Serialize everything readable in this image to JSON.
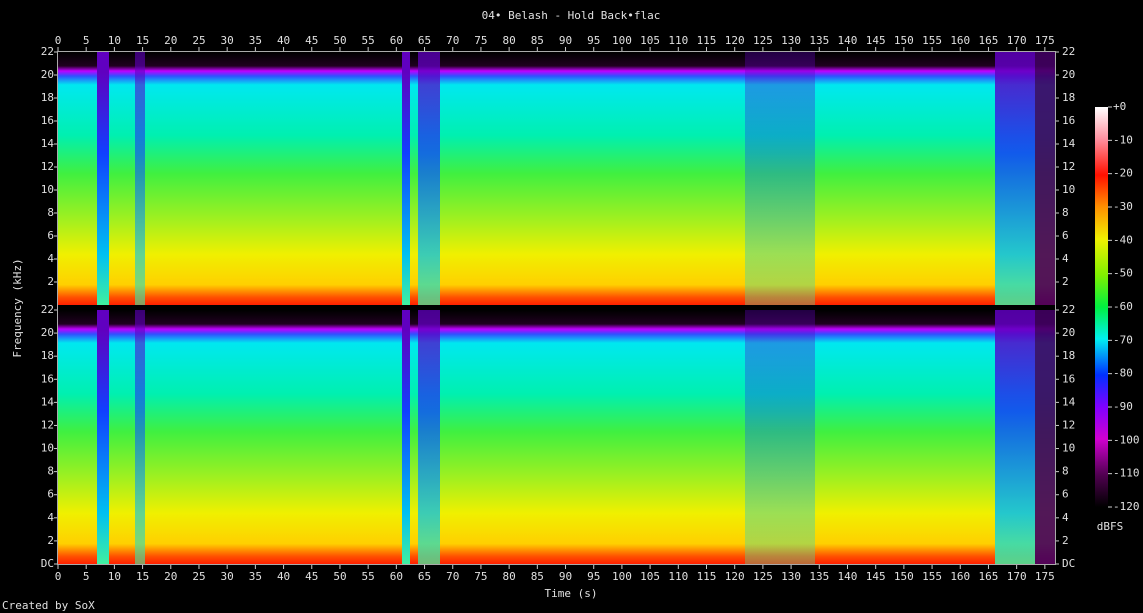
{
  "chart_data": {
    "type": "spectrogram",
    "title": "04• Belash - Hold Back•flac",
    "x_label": "Time (s)",
    "y_label": "Frequency (kHz)",
    "xlim": [
      0,
      176.8
    ],
    "xticks": [
      0,
      5,
      10,
      15,
      20,
      25,
      30,
      35,
      40,
      45,
      50,
      55,
      60,
      65,
      70,
      75,
      80,
      85,
      90,
      95,
      100,
      105,
      110,
      115,
      120,
      125,
      130,
      135,
      140,
      145,
      150,
      155,
      160,
      165,
      170,
      175
    ],
    "ylim": [
      0,
      22
    ],
    "panels": [
      {
        "yticks": [
          2,
          4,
          6,
          8,
          10,
          12,
          14,
          16,
          18,
          20,
          22
        ]
      },
      {
        "yticks": [
          {
            "value": 0,
            "label": "DC"
          },
          2,
          4,
          6,
          8,
          10,
          12,
          14,
          16,
          18,
          20,
          22
        ]
      }
    ],
    "colorbar": {
      "label": "dBFS",
      "lim": [
        -120,
        0
      ],
      "ticks": [
        {
          "value": 0,
          "label": "+0"
        },
        -10,
        -20,
        -30,
        -40,
        -50,
        -60,
        -70,
        -80,
        -90,
        -100,
        -110,
        -120
      ]
    },
    "footer": "Created by SoX"
  }
}
